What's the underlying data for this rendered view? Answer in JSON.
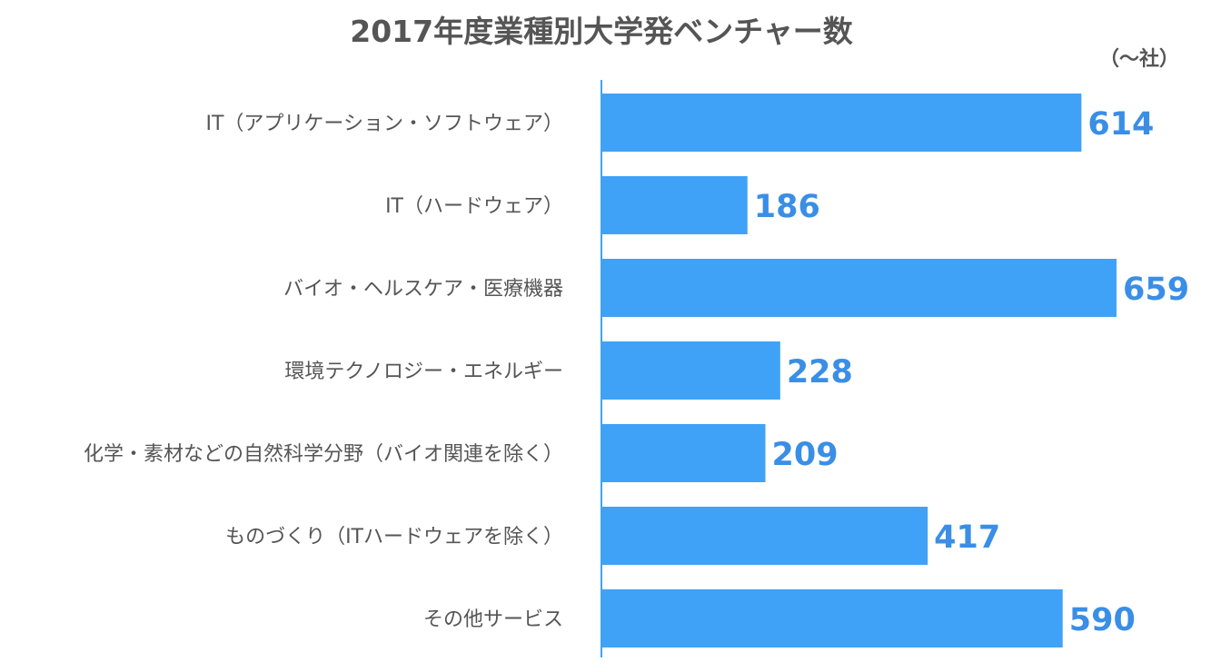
{
  "chart_data": {
    "type": "bar",
    "orientation": "horizontal",
    "title": "2017年度業種別大学発ベンチャー数",
    "unit_label": "（〜社）",
    "categories": [
      "IT（アプリケーション・ソフトウェア）",
      "IT（ハードウェア）",
      "バイオ・ヘルスケア・医療機器",
      "環境テクノロジー・エネルギー",
      "化学・素材などの自然科学分野（バイオ関連を除く）",
      "ものづくり（ITハードウェアを除く）",
      "その他サービス"
    ],
    "values": [
      614,
      186,
      659,
      228,
      209,
      417,
      590
    ],
    "xlim": [
      0,
      659
    ],
    "grid": false,
    "legend": "none",
    "colors": {
      "bar": "#3fa2f6",
      "value_label": "#3a8ee6",
      "axis": "#3fa2f6",
      "title": "#555555",
      "category_label": "#555555"
    }
  }
}
